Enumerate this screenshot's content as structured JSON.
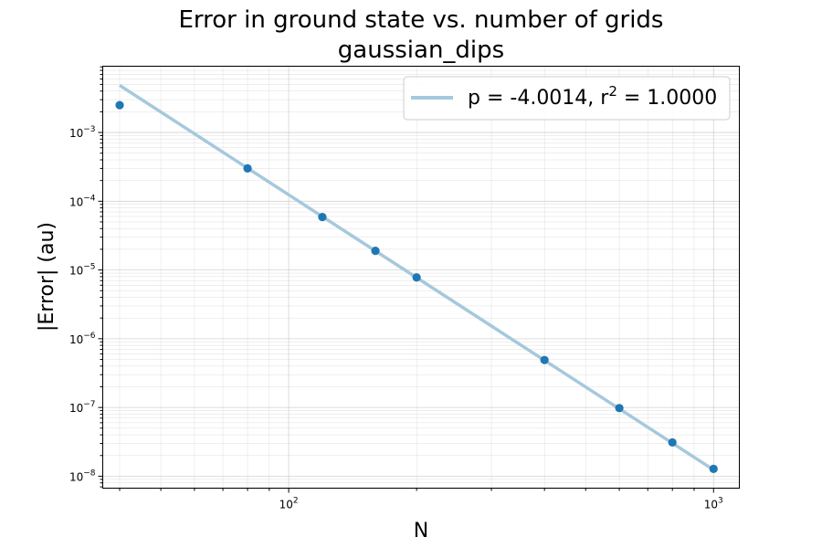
{
  "chart_data": {
    "type": "scatter",
    "title": "Error in ground state vs. number of grids",
    "subtitle": "gaussian_dips",
    "xlabel": "N",
    "ylabel": "|Error| (au)",
    "xscale": "log",
    "yscale": "log",
    "xlim": [
      36.5,
      1150
    ],
    "ylim": [
      6.7e-09,
      0.0092
    ],
    "grid": "major and minor, both axes",
    "legend_position": "top-right",
    "x_tick_labels": [
      {
        "value": 100,
        "base": "10",
        "exp": "2"
      },
      {
        "value": 1000,
        "base": "10",
        "exp": "3"
      }
    ],
    "y_tick_labels": [
      {
        "value": 1e-08,
        "base": "10",
        "exp": "−8"
      },
      {
        "value": 1e-07,
        "base": "10",
        "exp": "−7"
      },
      {
        "value": 1e-06,
        "base": "10",
        "exp": "−6"
      },
      {
        "value": 1e-05,
        "base": "10",
        "exp": "−5"
      },
      {
        "value": 0.0001,
        "base": "10",
        "exp": "−4"
      },
      {
        "value": 0.001,
        "base": "10",
        "exp": "−3"
      }
    ],
    "series": [
      {
        "kind": "scatter",
        "color": "#1f77b4",
        "points": [
          {
            "x": 40,
            "y": 0.0025
          },
          {
            "x": 80,
            "y": 0.0003
          },
          {
            "x": 120,
            "y": 5.9e-05
          },
          {
            "x": 160,
            "y": 1.9e-05
          },
          {
            "x": 200,
            "y": 7.8e-06
          },
          {
            "x": 400,
            "y": 4.9e-07
          },
          {
            "x": 600,
            "y": 9.8e-08
          },
          {
            "x": 800,
            "y": 3.1e-08
          },
          {
            "x": 1000,
            "y": 1.28e-08
          }
        ]
      },
      {
        "kind": "line",
        "color": "#a6c8dd",
        "legend_label": {
          "prefix": "p = -4.0014, r",
          "sup": "2",
          "suffix": " = 1.0000"
        },
        "points": [
          {
            "x": 40,
            "y": 0.00485
          },
          {
            "x": 1000,
            "y": 1.24e-08
          }
        ]
      }
    ]
  }
}
